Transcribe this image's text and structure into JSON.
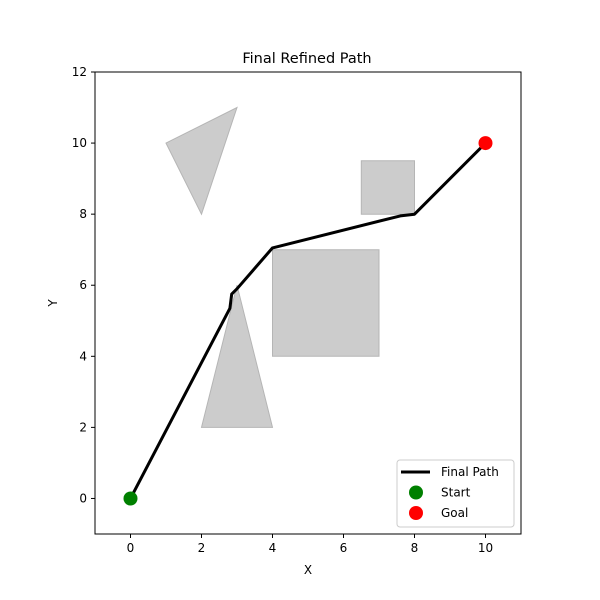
{
  "chart_data": {
    "type": "scatter",
    "title": "Final Refined Path",
    "xlabel": "X",
    "ylabel": "Y",
    "xlim": [
      -1,
      11
    ],
    "ylim": [
      -1,
      12
    ],
    "xticks": [
      0,
      2,
      4,
      6,
      8,
      10
    ],
    "yticks": [
      0,
      2,
      4,
      6,
      8,
      10,
      12
    ],
    "grid": false,
    "legend_position": "lower-right",
    "obstacles": [
      {
        "shape": "triangle",
        "points": [
          [
            1,
            10
          ],
          [
            3,
            11
          ],
          [
            2,
            8
          ]
        ],
        "color": "#cccccc"
      },
      {
        "shape": "triangle",
        "points": [
          [
            2,
            2
          ],
          [
            4,
            2
          ],
          [
            3,
            6
          ]
        ],
        "color": "#cccccc"
      },
      {
        "shape": "rectangle",
        "points": [
          [
            4,
            4
          ],
          [
            7,
            4
          ],
          [
            7,
            7
          ],
          [
            4,
            7
          ]
        ],
        "color": "#cccccc"
      },
      {
        "shape": "rectangle",
        "points": [
          [
            6.5,
            8
          ],
          [
            8,
            8
          ],
          [
            8,
            9.5
          ],
          [
            6.5,
            9.5
          ]
        ],
        "color": "#cccccc"
      }
    ],
    "series": [
      {
        "name": "Final Path",
        "kind": "line",
        "color": "#000000",
        "x": [
          0,
          2.8,
          2.85,
          3.0,
          4.0,
          7.6,
          8.0,
          10
        ],
        "y": [
          0,
          5.35,
          5.75,
          5.9,
          7.05,
          7.95,
          8.0,
          10
        ]
      },
      {
        "name": "Start",
        "kind": "point",
        "color": "#008000",
        "x": [
          0
        ],
        "y": [
          0
        ]
      },
      {
        "name": "Goal",
        "kind": "point",
        "color": "#ff0000",
        "x": [
          10
        ],
        "y": [
          10
        ]
      }
    ]
  }
}
